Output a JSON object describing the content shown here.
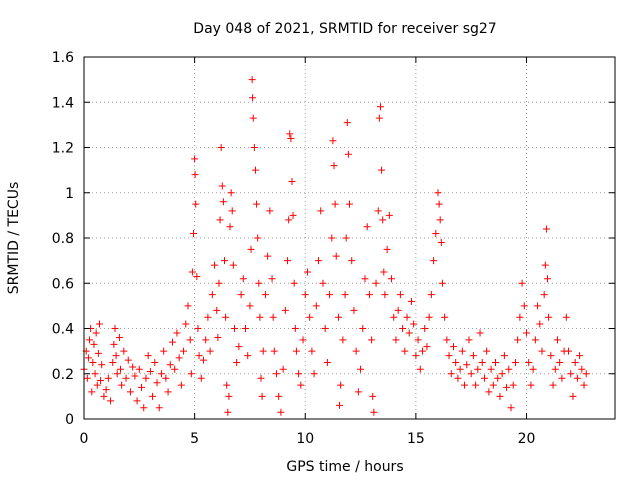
{
  "chart_data": {
    "type": "scatter",
    "title": "Day 048 of 2021, SRMTID for receiver sg27",
    "xlabel": "GPS time / hours",
    "ylabel": "SRMTID / TECUs",
    "xlim": [
      0,
      24
    ],
    "ylim": [
      0,
      1.6
    ],
    "xticks": [
      0,
      5,
      10,
      15,
      20
    ],
    "xtick_labels": [
      "0",
      "5",
      "10",
      "15",
      "20"
    ],
    "yticks": [
      0,
      0.2,
      0.4,
      0.6,
      0.8,
      1.0,
      1.2,
      1.4,
      1.6
    ],
    "ytick_labels": [
      "0",
      "0.2",
      "0.4",
      "0.6",
      "0.8",
      "1",
      "1.2",
      "1.4",
      "1.6"
    ],
    "grid": true,
    "series": [
      {
        "name": "SRMTID",
        "color": "#ff0000",
        "marker": "plus",
        "points": [
          [
            0.0,
            0.22
          ],
          [
            0.1,
            0.3
          ],
          [
            0.15,
            0.18
          ],
          [
            0.2,
            0.27
          ],
          [
            0.25,
            0.35
          ],
          [
            0.3,
            0.4
          ],
          [
            0.35,
            0.12
          ],
          [
            0.4,
            0.25
          ],
          [
            0.45,
            0.33
          ],
          [
            0.5,
            0.2
          ],
          [
            0.55,
            0.38
          ],
          [
            0.6,
            0.15
          ],
          [
            0.65,
            0.29
          ],
          [
            0.7,
            0.42
          ],
          [
            0.75,
            0.17
          ],
          [
            0.8,
            0.24
          ],
          [
            0.9,
            0.1
          ],
          [
            1.0,
            0.13
          ],
          [
            1.1,
            0.18
          ],
          [
            1.2,
            0.08
          ],
          [
            1.3,
            0.25
          ],
          [
            1.35,
            0.33
          ],
          [
            1.4,
            0.4
          ],
          [
            1.45,
            0.28
          ],
          [
            1.5,
            0.2
          ],
          [
            1.6,
            0.36
          ],
          [
            1.65,
            0.22
          ],
          [
            1.7,
            0.15
          ],
          [
            1.8,
            0.3
          ],
          [
            1.9,
            0.18
          ],
          [
            2.0,
            0.26
          ],
          [
            2.1,
            0.12
          ],
          [
            2.2,
            0.23
          ],
          [
            2.3,
            0.19
          ],
          [
            2.4,
            0.08
          ],
          [
            2.5,
            0.22
          ],
          [
            2.6,
            0.14
          ],
          [
            2.7,
            0.05
          ],
          [
            2.8,
            0.18
          ],
          [
            2.9,
            0.28
          ],
          [
            3.0,
            0.21
          ],
          [
            3.1,
            0.1
          ],
          [
            3.2,
            0.25
          ],
          [
            3.3,
            0.16
          ],
          [
            3.4,
            0.05
          ],
          [
            3.5,
            0.2
          ],
          [
            3.6,
            0.3
          ],
          [
            3.7,
            0.18
          ],
          [
            3.8,
            0.12
          ],
          [
            3.9,
            0.24
          ],
          [
            4.0,
            0.34
          ],
          [
            4.1,
            0.22
          ],
          [
            4.2,
            0.38
          ],
          [
            4.3,
            0.27
          ],
          [
            4.4,
            0.15
          ],
          [
            4.5,
            0.3
          ],
          [
            4.6,
            0.42
          ],
          [
            4.7,
            0.5
          ],
          [
            4.8,
            0.35
          ],
          [
            4.85,
            0.2
          ],
          [
            4.9,
            0.65
          ],
          [
            4.95,
            0.82
          ],
          [
            5.0,
            1.15
          ],
          [
            5.02,
            1.08
          ],
          [
            5.05,
            0.95
          ],
          [
            5.1,
            0.63
          ],
          [
            5.15,
            0.4
          ],
          [
            5.2,
            0.28
          ],
          [
            5.3,
            0.18
          ],
          [
            5.4,
            0.26
          ],
          [
            5.5,
            0.35
          ],
          [
            5.6,
            0.45
          ],
          [
            5.7,
            0.3
          ],
          [
            5.8,
            0.55
          ],
          [
            5.9,
            0.68
          ],
          [
            6.0,
            0.48
          ],
          [
            6.05,
            0.36
          ],
          [
            6.1,
            0.6
          ],
          [
            6.15,
            0.88
          ],
          [
            6.2,
            1.2
          ],
          [
            6.25,
            1.03
          ],
          [
            6.3,
            0.96
          ],
          [
            6.35,
            0.7
          ],
          [
            6.4,
            0.45
          ],
          [
            6.45,
            0.15
          ],
          [
            6.5,
            0.03
          ],
          [
            6.55,
            0.1
          ],
          [
            6.6,
            0.85
          ],
          [
            6.65,
            1.0
          ],
          [
            6.7,
            0.92
          ],
          [
            6.75,
            0.68
          ],
          [
            6.8,
            0.4
          ],
          [
            6.9,
            0.25
          ],
          [
            7.0,
            0.32
          ],
          [
            7.1,
            0.55
          ],
          [
            7.2,
            0.62
          ],
          [
            7.3,
            0.4
          ],
          [
            7.4,
            0.28
          ],
          [
            7.5,
            0.5
          ],
          [
            7.55,
            0.75
          ],
          [
            7.6,
            1.5
          ],
          [
            7.62,
            1.42
          ],
          [
            7.65,
            1.33
          ],
          [
            7.7,
            1.2
          ],
          [
            7.75,
            1.1
          ],
          [
            7.8,
            0.95
          ],
          [
            7.85,
            0.8
          ],
          [
            7.9,
            0.6
          ],
          [
            7.95,
            0.45
          ],
          [
            8.0,
            0.18
          ],
          [
            8.05,
            0.1
          ],
          [
            8.1,
            0.3
          ],
          [
            8.2,
            0.55
          ],
          [
            8.3,
            0.72
          ],
          [
            8.4,
            0.92
          ],
          [
            8.5,
            0.62
          ],
          [
            8.55,
            0.45
          ],
          [
            8.6,
            0.3
          ],
          [
            8.7,
            0.2
          ],
          [
            8.8,
            0.1
          ],
          [
            8.9,
            0.03
          ],
          [
            9.0,
            0.22
          ],
          [
            9.1,
            0.48
          ],
          [
            9.2,
            0.7
          ],
          [
            9.25,
            0.88
          ],
          [
            9.3,
            1.26
          ],
          [
            9.35,
            1.24
          ],
          [
            9.4,
            1.05
          ],
          [
            9.45,
            0.9
          ],
          [
            9.5,
            0.6
          ],
          [
            9.55,
            0.4
          ],
          [
            9.6,
            0.3
          ],
          [
            9.7,
            0.2
          ],
          [
            9.8,
            0.15
          ],
          [
            9.9,
            0.35
          ],
          [
            10.0,
            0.55
          ],
          [
            10.1,
            0.65
          ],
          [
            10.2,
            0.45
          ],
          [
            10.3,
            0.3
          ],
          [
            10.4,
            0.2
          ],
          [
            10.5,
            0.5
          ],
          [
            10.6,
            0.7
          ],
          [
            10.7,
            0.92
          ],
          [
            10.8,
            0.6
          ],
          [
            10.9,
            0.4
          ],
          [
            11.0,
            0.25
          ],
          [
            11.1,
            0.55
          ],
          [
            11.2,
            0.8
          ],
          [
            11.25,
            1.23
          ],
          [
            11.3,
            1.12
          ],
          [
            11.35,
            0.95
          ],
          [
            11.4,
            0.72
          ],
          [
            11.5,
            0.45
          ],
          [
            11.55,
            0.06
          ],
          [
            11.6,
            0.15
          ],
          [
            11.7,
            0.35
          ],
          [
            11.8,
            0.55
          ],
          [
            11.85,
            0.8
          ],
          [
            11.9,
            1.31
          ],
          [
            11.95,
            1.17
          ],
          [
            12.0,
            0.95
          ],
          [
            12.1,
            0.7
          ],
          [
            12.2,
            0.48
          ],
          [
            12.3,
            0.3
          ],
          [
            12.4,
            0.12
          ],
          [
            12.5,
            0.22
          ],
          [
            12.6,
            0.4
          ],
          [
            12.7,
            0.62
          ],
          [
            12.8,
            0.85
          ],
          [
            12.9,
            0.55
          ],
          [
            13.0,
            0.35
          ],
          [
            13.05,
            0.1
          ],
          [
            13.1,
            0.03
          ],
          [
            13.2,
            0.6
          ],
          [
            13.3,
            0.92
          ],
          [
            13.35,
            1.33
          ],
          [
            13.4,
            1.38
          ],
          [
            13.45,
            1.1
          ],
          [
            13.5,
            0.88
          ],
          [
            13.55,
            0.65
          ],
          [
            13.6,
            0.55
          ],
          [
            13.7,
            0.75
          ],
          [
            13.8,
            0.9
          ],
          [
            13.9,
            0.62
          ],
          [
            14.0,
            0.45
          ],
          [
            14.1,
            0.35
          ],
          [
            14.2,
            0.48
          ],
          [
            14.3,
            0.55
          ],
          [
            14.4,
            0.4
          ],
          [
            14.5,
            0.3
          ],
          [
            14.6,
            0.45
          ],
          [
            14.7,
            0.38
          ],
          [
            14.8,
            0.52
          ],
          [
            14.9,
            0.42
          ],
          [
            15.0,
            0.28
          ],
          [
            15.1,
            0.35
          ],
          [
            15.2,
            0.22
          ],
          [
            15.3,
            0.3
          ],
          [
            15.4,
            0.4
          ],
          [
            15.5,
            0.32
          ],
          [
            15.6,
            0.45
          ],
          [
            15.7,
            0.55
          ],
          [
            15.8,
            0.7
          ],
          [
            15.9,
            0.82
          ],
          [
            16.0,
            1.0
          ],
          [
            16.05,
            0.95
          ],
          [
            16.1,
            0.88
          ],
          [
            16.15,
            0.78
          ],
          [
            16.2,
            0.6
          ],
          [
            16.3,
            0.45
          ],
          [
            16.4,
            0.35
          ],
          [
            16.5,
            0.28
          ],
          [
            16.6,
            0.2
          ],
          [
            16.7,
            0.32
          ],
          [
            16.8,
            0.25
          ],
          [
            16.9,
            0.18
          ],
          [
            17.0,
            0.22
          ],
          [
            17.1,
            0.3
          ],
          [
            17.2,
            0.15
          ],
          [
            17.3,
            0.24
          ],
          [
            17.4,
            0.35
          ],
          [
            17.5,
            0.2
          ],
          [
            17.6,
            0.28
          ],
          [
            17.7,
            0.15
          ],
          [
            17.8,
            0.22
          ],
          [
            17.9,
            0.38
          ],
          [
            18.0,
            0.25
          ],
          [
            18.1,
            0.18
          ],
          [
            18.2,
            0.3
          ],
          [
            18.3,
            0.12
          ],
          [
            18.4,
            0.22
          ],
          [
            18.5,
            0.15
          ],
          [
            18.6,
            0.25
          ],
          [
            18.7,
            0.18
          ],
          [
            18.8,
            0.1
          ],
          [
            18.9,
            0.2
          ],
          [
            19.0,
            0.28
          ],
          [
            19.1,
            0.14
          ],
          [
            19.2,
            0.22
          ],
          [
            19.3,
            0.05
          ],
          [
            19.4,
            0.15
          ],
          [
            19.5,
            0.25
          ],
          [
            19.6,
            0.35
          ],
          [
            19.7,
            0.45
          ],
          [
            19.8,
            0.6
          ],
          [
            19.9,
            0.5
          ],
          [
            20.0,
            0.38
          ],
          [
            20.1,
            0.25
          ],
          [
            20.2,
            0.15
          ],
          [
            20.3,
            0.22
          ],
          [
            20.4,
            0.35
          ],
          [
            20.5,
            0.5
          ],
          [
            20.6,
            0.42
          ],
          [
            20.7,
            0.3
          ],
          [
            20.8,
            0.55
          ],
          [
            20.85,
            0.68
          ],
          [
            20.9,
            0.84
          ],
          [
            20.95,
            0.62
          ],
          [
            21.0,
            0.45
          ],
          [
            21.1,
            0.28
          ],
          [
            21.2,
            0.15
          ],
          [
            21.3,
            0.22
          ],
          [
            21.4,
            0.35
          ],
          [
            21.5,
            0.25
          ],
          [
            21.6,
            0.18
          ],
          [
            21.7,
            0.3
          ],
          [
            21.8,
            0.45
          ],
          [
            21.9,
            0.3
          ],
          [
            22.0,
            0.2
          ],
          [
            22.1,
            0.1
          ],
          [
            22.2,
            0.25
          ],
          [
            22.3,
            0.18
          ],
          [
            22.4,
            0.28
          ],
          [
            22.5,
            0.22
          ],
          [
            22.6,
            0.15
          ],
          [
            22.7,
            0.2
          ]
        ]
      }
    ]
  }
}
